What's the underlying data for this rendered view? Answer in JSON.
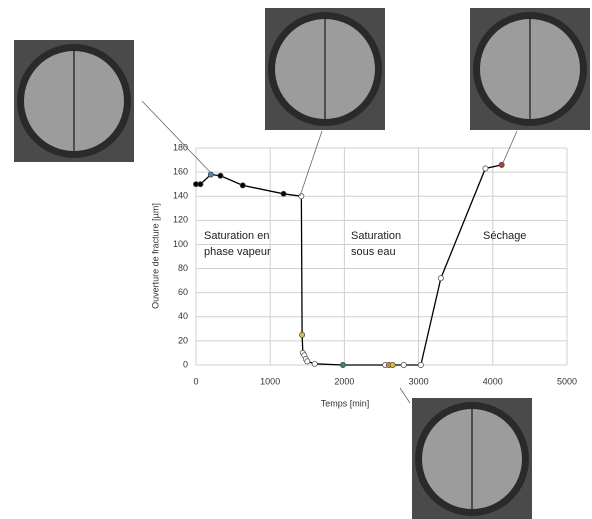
{
  "chart_data": {
    "type": "line",
    "xlabel": "Temps [min]",
    "ylabel": "Ouverture de fracture [µm]",
    "x": [
      0,
      60,
      200,
      330,
      630,
      1180,
      1420,
      1430,
      1440,
      1460,
      1480,
      1500,
      1600,
      1980,
      2550,
      2600,
      2650,
      2800,
      3030,
      3300,
      3900,
      4120
    ],
    "series": [
      {
        "color": "#000000",
        "values": [
          150,
          150,
          158,
          157,
          149,
          142,
          140,
          25,
          10,
          8,
          5,
          3,
          1,
          0,
          0,
          0,
          0,
          0,
          0,
          72,
          163,
          166
        ],
        "point_colors": [
          "#000000",
          "#000000",
          "#3a8fc0",
          "#000000",
          "#000000",
          "#000000",
          "#ffffff",
          "#d9c23a",
          "#ffffff",
          "#ffffff",
          "#ffffff",
          "#ffffff",
          "#ffffff",
          "#2e8b6b",
          "#ffffff",
          "#e08a1e",
          "#d9c23a",
          "#ffffff",
          "#ffffff",
          "#ffffff",
          "#ffffff",
          "#c0392b"
        ]
      }
    ],
    "xlim": [
      0,
      5000
    ],
    "xticks": [
      0,
      1000,
      2000,
      3000,
      4000,
      5000
    ],
    "ylim": [
      0,
      180
    ],
    "yticks": [
      0,
      20,
      40,
      60,
      80,
      100,
      120,
      140,
      160,
      180
    ],
    "grid": true,
    "annotations": [
      [
        "Saturation en",
        "phase vapeur"
      ],
      [
        "Saturation",
        "sous eau"
      ],
      [
        "Séchage"
      ]
    ]
  }
}
